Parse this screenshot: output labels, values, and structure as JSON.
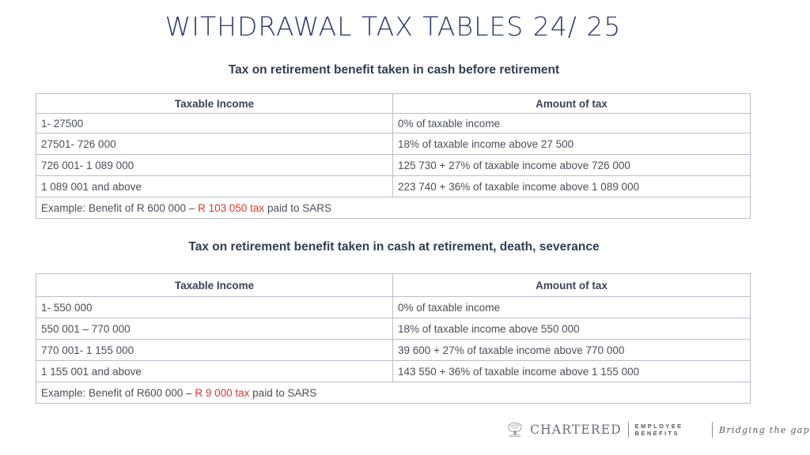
{
  "page": {
    "title": "WITHDRAWAL TAX TABLES 24/ 25"
  },
  "section1": {
    "heading": "Tax on retirement benefit taken in cash before retirement",
    "headers": [
      "Taxable Income",
      "Amount of tax"
    ],
    "rows": [
      [
        "1- 27500",
        "0% of taxable income"
      ],
      [
        "27501- 726 000",
        "18% of taxable income above 27 500"
      ],
      [
        "726 001- 1 089 000",
        "125 730 + 27% of taxable income above 726 000"
      ],
      [
        "1 089 001 and above",
        "223 740 + 36% of taxable income above 1 089 000"
      ]
    ],
    "example": {
      "prefix": "Example: Benefit of R 600 000 – ",
      "highlight": "R 103 050 tax",
      "suffix": " paid to SARS"
    }
  },
  "section2": {
    "heading": "Tax on retirement benefit taken in cash at retirement, death, severance",
    "headers": [
      "Taxable Income",
      "Amount of tax"
    ],
    "rows": [
      [
        "1- 550 000",
        "0% of taxable income"
      ],
      [
        "550 001 – 770 000",
        "18% of taxable income above 550 000"
      ],
      [
        "770 001- 1 155 000",
        "39 600 + 27% of taxable income above 770 000"
      ],
      [
        "1 155 001 and above",
        "143 550 + 36% of taxable income above 1 155 000"
      ]
    ],
    "example": {
      "prefix": "Example: Benefit of R600 000 – ",
      "highlight": "R 9 000 tax",
      "suffix": " paid to SARS"
    }
  },
  "footer": {
    "brand": "CHARTERED",
    "division": "EMPLOYEE BENEFITS",
    "tagline": "Bridging the gap",
    "logo_icon": "tree-crest-icon"
  },
  "colors": {
    "title": "#2d3e6b",
    "highlight": "#e2352c",
    "border": "#b9bccd"
  }
}
